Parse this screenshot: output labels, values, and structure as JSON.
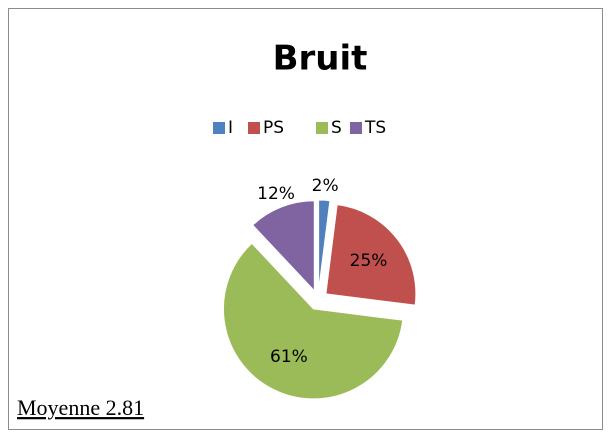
{
  "chart_data": {
    "type": "pie",
    "title": "Bruit",
    "categories": [
      "I",
      "PS",
      "S",
      "TS"
    ],
    "values": [
      2,
      25,
      61,
      12
    ],
    "value_labels": [
      "2%",
      "25%",
      "61%",
      "12%"
    ],
    "colors": [
      "#4f81bd",
      "#c0504d",
      "#9bbb59",
      "#8064a2"
    ],
    "legend": "top"
  },
  "caption": "Moyenne 2.81"
}
